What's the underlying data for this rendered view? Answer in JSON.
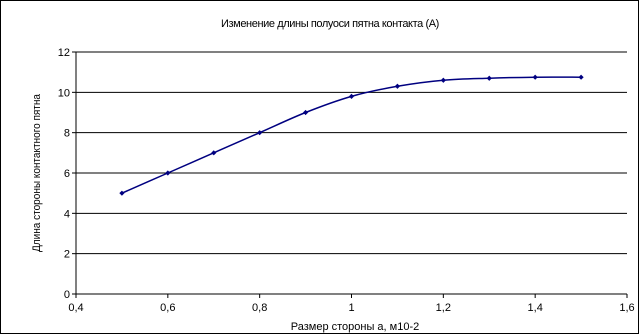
{
  "chart_data": {
    "type": "line",
    "title": "Изменение длины полуоси пятна контакта (А)",
    "xlabel": "Размер стороны а, м10-2",
    "ylabel": "Длина стороны контактного пятна",
    "xlim": [
      0.4,
      1.6
    ],
    "ylim": [
      0,
      12
    ],
    "x_ticks": [
      "0,4",
      "0,6",
      "0,8",
      "1",
      "1,2",
      "1,4",
      "1,6"
    ],
    "y_ticks": [
      "0",
      "2",
      "4",
      "6",
      "8",
      "10",
      "12"
    ],
    "grid": "horizontal",
    "series": [
      {
        "x": [
          0.5,
          0.6,
          0.7,
          0.8,
          0.9,
          1.0,
          1.1,
          1.2,
          1.3,
          1.4,
          1.5
        ],
        "y": [
          5.0,
          6.0,
          7.0,
          8.0,
          9.0,
          9.8,
          10.3,
          10.6,
          10.7,
          10.75,
          10.75
        ],
        "color": "#000080"
      }
    ]
  }
}
